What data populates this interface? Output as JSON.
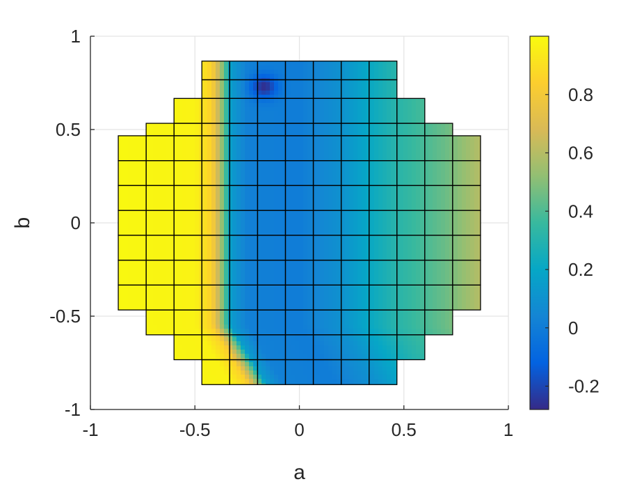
{
  "chart_data": {
    "type": "heatmap",
    "title": "",
    "xlabel": "a",
    "ylabel": "b",
    "xlim": [
      -1,
      1
    ],
    "ylim": [
      -1,
      1
    ],
    "xticks": [
      -1,
      -0.5,
      0,
      0.5,
      1
    ],
    "yticks": [
      -1,
      -0.5,
      0,
      0.5,
      1
    ],
    "xtick_labels": [
      "-1",
      "-0.5",
      "0",
      "0.5",
      "1"
    ],
    "ytick_labels": [
      "-1",
      "-0.5",
      "0",
      "0.5",
      "1"
    ],
    "grid": true,
    "mesh": {
      "cell_size": 0.1333,
      "rows": [
        {
          "b_from": 0.6667,
          "b_to": 0.8667,
          "a_from": -0.4667,
          "a_to": 0.4667
        },
        {
          "b_from": 0.5333,
          "b_to": 0.6667,
          "a_from": -0.6,
          "a_to": 0.6
        },
        {
          "b_from": 0.4667,
          "b_to": 0.5333,
          "a_from": -0.7333,
          "a_to": 0.7333
        },
        {
          "b_from": -0.4667,
          "b_to": 0.4667,
          "a_from": -0.8667,
          "a_to": 0.8667
        },
        {
          "b_from": -0.6,
          "b_to": -0.4667,
          "a_from": -0.7333,
          "a_to": 0.7333
        },
        {
          "b_from": -0.7333,
          "b_to": -0.6,
          "a_from": -0.6,
          "a_to": 0.6
        },
        {
          "b_from": -0.8667,
          "b_to": -0.7333,
          "a_from": -0.4667,
          "a_to": 0.4667
        }
      ]
    },
    "field": {
      "description_of_values": "approximate colour values read from colorbar",
      "profile_along_a": [
        {
          "a": -0.8667,
          "value": 0.99
        },
        {
          "a": -0.5,
          "value": 0.97
        },
        {
          "a": -0.42,
          "value": 0.85
        },
        {
          "a": -0.36,
          "value": 0.45
        },
        {
          "a": -0.33,
          "value": 0.15
        },
        {
          "a": -0.25,
          "value": 0.02
        },
        {
          "a": 0.0,
          "value": 0.0
        },
        {
          "a": 0.2,
          "value": 0.1
        },
        {
          "a": 0.45,
          "value": 0.3
        },
        {
          "a": 0.7,
          "value": 0.45
        },
        {
          "a": 0.8667,
          "value": 0.6
        }
      ],
      "minimum_point": {
        "a": -0.17,
        "b": 0.73,
        "value": -0.27
      }
    },
    "colorbar": {
      "limits": [
        -0.28,
        1.0
      ],
      "ticks": [
        -0.2,
        0,
        0.2,
        0.4,
        0.6,
        0.8
      ],
      "tick_labels": [
        "-0.2",
        "0",
        "0.2",
        "0.4",
        "0.6",
        "0.8"
      ],
      "colormap": "parula",
      "stops": [
        {
          "t": 0.0,
          "color": "#352A87"
        },
        {
          "t": 0.125,
          "color": "#0363E1"
        },
        {
          "t": 0.25,
          "color": "#1485D4"
        },
        {
          "t": 0.375,
          "color": "#06A7C6"
        },
        {
          "t": 0.5,
          "color": "#38B99E"
        },
        {
          "t": 0.625,
          "color": "#92BF73"
        },
        {
          "t": 0.75,
          "color": "#D9BA56"
        },
        {
          "t": 0.875,
          "color": "#FCCE2E"
        },
        {
          "t": 1.0,
          "color": "#F9FB0E"
        }
      ]
    }
  }
}
